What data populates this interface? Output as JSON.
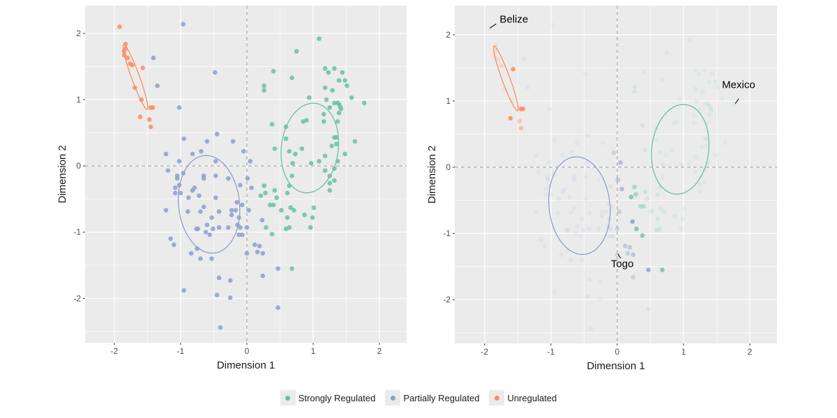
{
  "chart_data": [
    {
      "type": "scatter",
      "panel": "left",
      "xlabel": "Dimension 1",
      "ylabel": "Dimension 2",
      "xlim": [
        -2.44,
        2.41
      ],
      "ylim": [
        -2.67,
        2.42
      ],
      "xticks": [
        -2,
        -1,
        0,
        1,
        2
      ],
      "yticks": [
        -2,
        -1,
        0,
        1,
        2
      ],
      "grid": true,
      "reference_lines": {
        "x": 0,
        "y": 0,
        "style": "dashed"
      }
    },
    {
      "type": "scatter",
      "panel": "right",
      "xlabel": "Dimension 1",
      "ylabel": "Dimension 2",
      "xlim": [
        -2.45,
        2.41
      ],
      "ylim": [
        -2.66,
        2.44
      ],
      "xticks": [
        -2,
        -1,
        0,
        1,
        2
      ],
      "yticks": [
        -2,
        -1,
        0,
        1,
        2
      ],
      "grid": true,
      "reference_lines": {
        "x": 0,
        "y": 0,
        "style": "dashed"
      },
      "annotations": [
        {
          "text": "Belize",
          "x": -1.92,
          "y": 2.1
        },
        {
          "text": "Mexico",
          "x": 1.77,
          "y": 0.95
        },
        {
          "text": "Togo",
          "x": 0.0,
          "y": -1.32
        }
      ]
    }
  ],
  "point_format": [
    "x",
    "y",
    "right_panel_opacity"
  ],
  "series": [
    {
      "name": "Strongly Regulated",
      "color": "#66c2a5",
      "ellipse": {
        "center": [
          0.95,
          0.27
        ],
        "semi_axes": [
          0.68,
          0.43
        ],
        "angle_deg": 83
      },
      "points": [
        [
          1.09,
          1.92,
          0.1
        ],
        [
          0.75,
          1.73,
          0.1
        ],
        [
          0.4,
          1.43,
          0.1
        ],
        [
          0.68,
          1.33,
          0.1
        ],
        [
          1.18,
          1.47,
          0.1
        ],
        [
          1.32,
          1.47,
          0.1
        ],
        [
          1.23,
          1.41,
          0.1
        ],
        [
          1.44,
          1.41,
          0.1
        ],
        [
          1.39,
          1.29,
          0.1
        ],
        [
          1.48,
          1.29,
          0.1
        ],
        [
          1.51,
          1.21,
          0.1
        ],
        [
          0.26,
          1.21,
          0.15
        ],
        [
          0.26,
          1.14,
          0.15
        ],
        [
          1.18,
          1.18,
          0.1
        ],
        [
          1.29,
          1.14,
          0.1
        ],
        [
          0.94,
          1.03,
          0.1
        ],
        [
          1.2,
          1.0,
          0.1
        ],
        [
          1.58,
          1.03,
          0.1
        ],
        [
          1.77,
          0.95,
          0.1
        ],
        [
          1.32,
          0.95,
          0.1
        ],
        [
          1.37,
          0.95,
          0.1
        ],
        [
          1.39,
          0.93,
          0.1
        ],
        [
          1.41,
          0.89,
          0.1
        ],
        [
          1.42,
          0.86,
          0.1
        ],
        [
          1.39,
          0.8,
          0.1
        ],
        [
          1.25,
          0.88,
          0.1
        ],
        [
          1.16,
          0.78,
          0.1
        ],
        [
          1.16,
          0.67,
          0.1
        ],
        [
          1.37,
          0.67,
          0.1
        ],
        [
          0.9,
          0.69,
          0.1
        ],
        [
          0.85,
          0.67,
          0.1
        ],
        [
          0.38,
          0.63,
          0.15
        ],
        [
          0.59,
          0.59,
          0.1
        ],
        [
          0.59,
          0.41,
          0.1
        ],
        [
          1.32,
          0.43,
          0.1
        ],
        [
          1.35,
          0.43,
          0.1
        ],
        [
          1.35,
          0.33,
          0.1
        ],
        [
          1.28,
          0.3,
          0.1
        ],
        [
          1.63,
          0.37,
          0.1
        ],
        [
          0.42,
          0.26,
          0.15
        ],
        [
          0.64,
          0.22,
          0.1
        ],
        [
          0.83,
          0.26,
          0.1
        ],
        [
          0.73,
          0.18,
          0.1
        ],
        [
          1.48,
          0.18,
          0.1
        ],
        [
          1.18,
          0.15,
          0.1
        ],
        [
          1.09,
          0.07,
          0.1
        ],
        [
          1.37,
          0.07,
          0.1
        ],
        [
          0.69,
          0.04,
          0.1
        ],
        [
          0.97,
          0.04,
          0.1
        ],
        [
          1.32,
          -0.04,
          0.1
        ],
        [
          1.18,
          -0.07,
          0.1
        ],
        [
          0.68,
          -0.15,
          0.1
        ],
        [
          1.25,
          -0.15,
          0.1
        ],
        [
          1.32,
          -0.22,
          0.1
        ],
        [
          1.25,
          -0.26,
          0.1
        ],
        [
          1.25,
          -0.37,
          0.1
        ],
        [
          0.64,
          -0.3,
          0.15
        ],
        [
          0.26,
          -0.3,
          0.5
        ],
        [
          0.42,
          -0.37,
          0.25
        ],
        [
          0.28,
          -0.41,
          0.5
        ],
        [
          0.21,
          -0.45,
          0.8
        ],
        [
          0.61,
          -0.41,
          0.15
        ],
        [
          0.45,
          -0.48,
          0.2
        ],
        [
          0.35,
          -0.59,
          0.4
        ],
        [
          0.4,
          -0.59,
          0.4
        ],
        [
          0.52,
          -0.67,
          0.2
        ],
        [
          0.66,
          -0.63,
          0.15
        ],
        [
          0.71,
          -0.67,
          0.15
        ],
        [
          1.01,
          -0.63,
          0.1
        ],
        [
          0.87,
          -0.74,
          0.12
        ],
        [
          0.61,
          -0.78,
          0.2
        ],
        [
          0.99,
          -0.78,
          0.1
        ],
        [
          0.29,
          -0.93,
          0.8
        ],
        [
          0.59,
          -0.95,
          0.2
        ],
        [
          0.64,
          -0.93,
          0.2
        ],
        [
          0.96,
          -0.93,
          0.1
        ],
        [
          0.38,
          -1.03,
          0.8
        ],
        [
          0.68,
          -1.55,
          0.8
        ]
      ]
    },
    {
      "name": "Partially Regulated",
      "color": "#8da0cb",
      "ellipse": {
        "center": [
          -0.57,
          -0.58
        ],
        "semi_axes": [
          0.74,
          0.46
        ],
        "angle_deg": 96
      },
      "points": [
        [
          -0.96,
          2.14,
          0.1
        ],
        [
          -1.41,
          1.63,
          0.1
        ],
        [
          -0.48,
          1.41,
          0.1
        ],
        [
          -1.35,
          1.21,
          0.1
        ],
        [
          -1.02,
          0.88,
          0.1
        ],
        [
          -0.45,
          0.48,
          0.1
        ],
        [
          -0.95,
          0.41,
          0.1
        ],
        [
          -0.6,
          0.37,
          0.1
        ],
        [
          -0.21,
          0.37,
          0.1
        ],
        [
          -1.22,
          0.18,
          0.1
        ],
        [
          -0.82,
          0.18,
          0.1
        ],
        [
          -0.69,
          0.22,
          0.1
        ],
        [
          -0.05,
          0.22,
          0.35
        ],
        [
          -1.02,
          0.07,
          0.1
        ],
        [
          -0.47,
          0.07,
          0.1
        ],
        [
          0.05,
          0.07,
          0.6
        ],
        [
          -1.19,
          -0.07,
          0.1
        ],
        [
          -1.05,
          -0.15,
          0.1
        ],
        [
          -1.05,
          -0.19,
          0.1
        ],
        [
          -0.96,
          -0.11,
          0.1
        ],
        [
          -0.65,
          -0.15,
          0.1
        ],
        [
          -0.65,
          -0.19,
          0.1
        ],
        [
          -0.47,
          -0.15,
          0.1
        ],
        [
          -0.28,
          -0.19,
          0.1
        ],
        [
          0.01,
          -0.19,
          0.5
        ],
        [
          -1.08,
          -0.33,
          0.1
        ],
        [
          -1.02,
          -0.29,
          0.1
        ],
        [
          -1.08,
          -0.41,
          0.1
        ],
        [
          -1.0,
          -0.41,
          0.1
        ],
        [
          -0.82,
          -0.37,
          0.1
        ],
        [
          -0.79,
          -0.33,
          0.1
        ],
        [
          -0.72,
          -0.45,
          0.1
        ],
        [
          -0.88,
          -0.48,
          0.1
        ],
        [
          -0.47,
          -0.48,
          0.1
        ],
        [
          -0.1,
          -0.29,
          0.15
        ],
        [
          0.07,
          -0.33,
          0.6
        ],
        [
          -1.22,
          -0.67,
          0.1
        ],
        [
          -0.89,
          -0.69,
          0.1
        ],
        [
          -0.7,
          -0.69,
          0.1
        ],
        [
          -0.65,
          -0.62,
          0.1
        ],
        [
          -0.42,
          -0.69,
          0.1
        ],
        [
          -0.15,
          -0.55,
          0.1
        ],
        [
          -0.07,
          -0.59,
          0.12
        ],
        [
          -0.23,
          -0.67,
          0.1
        ],
        [
          -0.17,
          -0.67,
          0.1
        ],
        [
          0.03,
          -0.67,
          0.4
        ],
        [
          -0.23,
          -0.74,
          0.1
        ],
        [
          -0.53,
          -0.78,
          0.1
        ],
        [
          -0.12,
          -0.78,
          0.1
        ],
        [
          -0.6,
          -0.89,
          0.1
        ],
        [
          -0.14,
          -0.89,
          0.1
        ],
        [
          -0.76,
          -0.95,
          0.1
        ],
        [
          -0.74,
          -0.95,
          0.1
        ],
        [
          -0.51,
          -0.95,
          0.1
        ],
        [
          -0.42,
          -0.93,
          0.1
        ],
        [
          -0.28,
          -0.93,
          0.1
        ],
        [
          -0.1,
          -0.93,
          0.12
        ],
        [
          0.0,
          -0.93,
          0.35
        ],
        [
          -0.62,
          -1.0,
          0.1
        ],
        [
          -0.56,
          -1.04,
          0.1
        ],
        [
          -0.12,
          -1.04,
          0.1
        ],
        [
          -0.07,
          -1.04,
          0.12
        ],
        [
          -1.15,
          -1.1,
          0.1
        ],
        [
          -1.1,
          -1.19,
          0.1
        ],
        [
          0.23,
          -0.82,
          0.8
        ],
        [
          0.12,
          -1.19,
          0.45
        ],
        [
          0.19,
          -1.21,
          0.45
        ],
        [
          0.16,
          -1.3,
          0.4
        ],
        [
          0.24,
          -1.32,
          0.5
        ],
        [
          0.0,
          -1.32,
          0.3
        ],
        [
          -0.84,
          -1.32,
          0.1
        ],
        [
          -0.75,
          -1.25,
          0.1
        ],
        [
          -0.7,
          -1.4,
          0.1
        ],
        [
          -0.53,
          -1.4,
          0.1
        ],
        [
          0.47,
          -1.55,
          0.8
        ],
        [
          0.24,
          -1.66,
          0.35
        ],
        [
          -0.42,
          -1.69,
          0.1
        ],
        [
          -0.25,
          -1.73,
          0.1
        ],
        [
          -0.95,
          -1.88,
          0.1
        ],
        [
          -0.45,
          -1.95,
          0.1
        ],
        [
          -0.25,
          -1.99,
          0.1
        ],
        [
          -0.4,
          -2.44,
          0.1
        ],
        [
          0.47,
          -2.14,
          0.12
        ]
      ]
    },
    {
      "name": "Unregulated",
      "color": "#fc8d62",
      "ellipse": {
        "center": [
          -1.68,
          1.34
        ],
        "semi_axes": [
          0.52,
          0.06
        ],
        "angle_deg": -70
      },
      "points": [
        [
          -1.92,
          2.1,
          0.15
        ],
        [
          -1.83,
          1.84,
          0.12
        ],
        [
          -1.83,
          1.77,
          0.12
        ],
        [
          -1.85,
          1.73,
          0.12
        ],
        [
          -1.85,
          1.67,
          0.12
        ],
        [
          -1.8,
          1.63,
          0.15
        ],
        [
          -1.76,
          1.54,
          0.15
        ],
        [
          -1.73,
          1.52,
          0.15
        ],
        [
          -1.57,
          1.48,
          0.85
        ],
        [
          -1.69,
          1.18,
          0.12
        ],
        [
          -1.59,
          1.0,
          0.15
        ],
        [
          -1.45,
          0.88,
          0.85
        ],
        [
          -1.42,
          0.88,
          0.85
        ],
        [
          -1.61,
          0.74,
          0.85
        ],
        [
          -1.47,
          0.7,
          0.35
        ],
        [
          -1.45,
          0.59,
          0.45
        ]
      ]
    }
  ],
  "legend": {
    "position": "bottom",
    "items": [
      "Strongly Regulated",
      "Partially Regulated",
      "Unregulated"
    ]
  }
}
